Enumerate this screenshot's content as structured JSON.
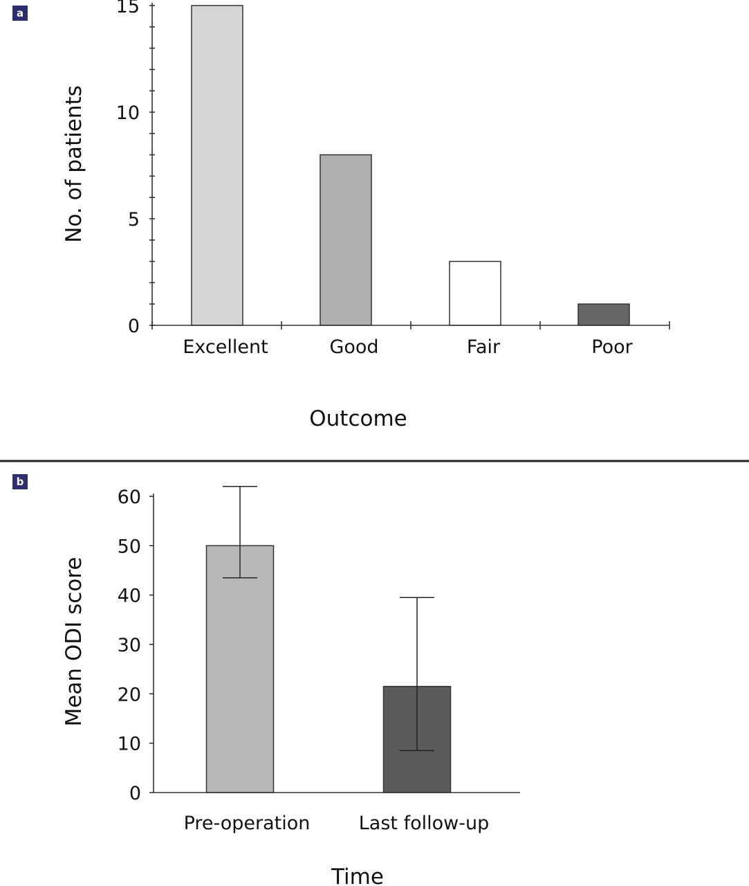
{
  "divider_color": "#222222",
  "chart_data": [
    {
      "panel_label": "a",
      "type": "bar",
      "categories": [
        "Excellent",
        "Good",
        "Fair",
        "Poor"
      ],
      "values": [
        15,
        8,
        3,
        1
      ],
      "colors": [
        "#d6d6d6",
        "#b0b0b0",
        "#ffffff",
        "#666666"
      ],
      "xlabel": "Outcome",
      "ylabel": "No. of patients",
      "ylim": [
        0,
        15
      ],
      "yticks": [
        0,
        5,
        10,
        15
      ],
      "grid": false,
      "legend": "none"
    },
    {
      "panel_label": "b",
      "type": "bar",
      "categories": [
        "Pre-operation",
        "Last follow-up"
      ],
      "values": [
        50,
        21.5
      ],
      "error_low": [
        43.5,
        8.5
      ],
      "error_high": [
        62,
        39.5
      ],
      "colors": [
        "#b8b8b8",
        "#5a5a5a"
      ],
      "xlabel": "Time",
      "ylabel": "Mean ODI score",
      "ylim": [
        0,
        60
      ],
      "yticks": [
        0,
        10,
        20,
        30,
        40,
        50,
        60
      ],
      "grid": false,
      "legend": "none"
    }
  ]
}
